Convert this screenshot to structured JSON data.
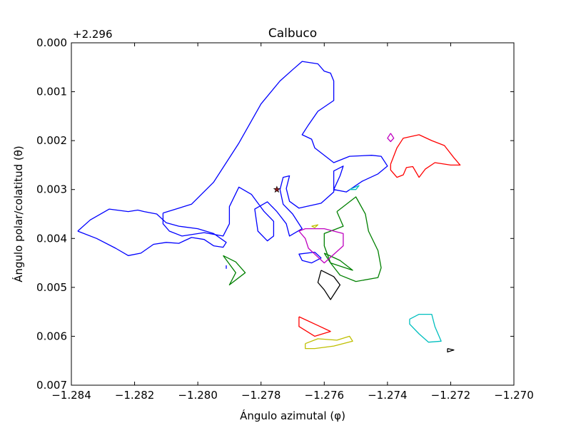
{
  "chart_data": {
    "type": "line",
    "title": "Calbuco",
    "xlabel": "Ángulo azimutal (φ)",
    "ylabel": "Ángulo polar/colatitud (θ)",
    "y_offset_label": "+2.296",
    "xlim": [
      -1.284,
      -1.27
    ],
    "ylim": [
      0.007,
      0.0
    ],
    "y_inverted": true,
    "grid": false,
    "legend": "none",
    "x_ticks": [
      -1.284,
      -1.282,
      -1.28,
      -1.278,
      -1.276,
      -1.274,
      -1.272,
      -1.27
    ],
    "x_tick_labels": [
      "−1.284",
      "−1.282",
      "−1.280",
      "−1.278",
      "−1.276",
      "−1.274",
      "−1.272",
      "−1.270"
    ],
    "y_ticks": [
      0.0,
      0.001,
      0.002,
      0.003,
      0.004,
      0.005,
      0.006,
      0.007
    ],
    "y_tick_labels": [
      "0.000",
      "0.001",
      "0.002",
      "0.003",
      "0.004",
      "0.005",
      "0.006",
      "0.007"
    ],
    "marker": {
      "x": -1.2775,
      "y": 0.003,
      "color": "#8b1a1a",
      "symbol": "star"
    },
    "series": [
      {
        "color": "#0000ff",
        "points": [
          [
            -1.2838,
            0.00385
          ],
          [
            -1.2832,
            0.004
          ],
          [
            -1.2826,
            0.0042
          ],
          [
            -1.2822,
            0.00435
          ],
          [
            -1.2818,
            0.0043
          ],
          [
            -1.2814,
            0.00412
          ],
          [
            -1.281,
            0.00408
          ],
          [
            -1.2806,
            0.0041
          ],
          [
            -1.2802,
            0.00398
          ],
          [
            -1.2798,
            0.00402
          ],
          [
            -1.2795,
            0.00415
          ],
          [
            -1.2792,
            0.00418
          ],
          [
            -1.2791,
            0.00408
          ],
          [
            -1.2795,
            0.0039
          ],
          [
            -1.28,
            0.0038
          ],
          [
            -1.2806,
            0.00375
          ],
          [
            -1.281,
            0.00368
          ],
          [
            -1.2813,
            0.0035
          ],
          [
            -1.2817,
            0.00345
          ],
          [
            -1.2819,
            0.00342
          ],
          [
            -1.2822,
            0.00345
          ],
          [
            -1.2828,
            0.0034
          ],
          [
            -1.2834,
            0.00362
          ],
          [
            -1.2838,
            0.00385
          ]
        ]
      },
      {
        "color": "#0000ff",
        "points": [
          [
            -1.2811,
            0.00348
          ],
          [
            -1.2802,
            0.0033
          ],
          [
            -1.2795,
            0.00285
          ],
          [
            -1.2787,
            0.00205
          ],
          [
            -1.278,
            0.00125
          ],
          [
            -1.2774,
            0.00078
          ],
          [
            -1.277,
            0.00055
          ],
          [
            -1.2767,
            0.00038
          ],
          [
            -1.2762,
            0.00043
          ],
          [
            -1.276,
            0.00058
          ],
          [
            -1.2758,
            0.00062
          ],
          [
            -1.2757,
            0.00078
          ],
          [
            -1.2757,
            0.00118
          ],
          [
            -1.2762,
            0.0014
          ],
          [
            -1.2765,
            0.00168
          ],
          [
            -1.2767,
            0.00188
          ],
          [
            -1.2764,
            0.00197
          ],
          [
            -1.2763,
            0.00215
          ],
          [
            -1.2757,
            0.00245
          ],
          [
            -1.2752,
            0.00232
          ],
          [
            -1.2745,
            0.0023
          ],
          [
            -1.2742,
            0.00232
          ],
          [
            -1.274,
            0.00252
          ],
          [
            -1.2743,
            0.00268
          ],
          [
            -1.2748,
            0.00283
          ],
          [
            -1.2753,
            0.00305
          ],
          [
            -1.2757,
            0.003
          ],
          [
            -1.2755,
            0.00272
          ],
          [
            -1.2754,
            0.00252
          ],
          [
            -1.2757,
            0.00262
          ],
          [
            -1.2757,
            0.00305
          ],
          [
            -1.2761,
            0.00328
          ],
          [
            -1.2768,
            0.00338
          ],
          [
            -1.2771,
            0.00324
          ],
          [
            -1.2772,
            0.00298
          ],
          [
            -1.2771,
            0.00272
          ],
          [
            -1.2773,
            0.00275
          ],
          [
            -1.2774,
            0.003
          ],
          [
            -1.2773,
            0.0033
          ],
          [
            -1.277,
            0.0035
          ],
          [
            -1.2767,
            0.0038
          ],
          [
            -1.2771,
            0.00395
          ],
          [
            -1.2772,
            0.0037
          ],
          [
            -1.2775,
            0.00345
          ],
          [
            -1.2778,
            0.00325
          ],
          [
            -1.2782,
            0.0034
          ],
          [
            -1.2781,
            0.00385
          ],
          [
            -1.2778,
            0.00405
          ],
          [
            -1.2776,
            0.00395
          ],
          [
            -1.2776,
            0.00365
          ],
          [
            -1.2779,
            0.00345
          ],
          [
            -1.2783,
            0.0031
          ],
          [
            -1.2787,
            0.00295
          ],
          [
            -1.279,
            0.00335
          ],
          [
            -1.279,
            0.0037
          ],
          [
            -1.2792,
            0.00395
          ],
          [
            -1.2798,
            0.00388
          ],
          [
            -1.2805,
            0.00395
          ],
          [
            -1.2809,
            0.00385
          ],
          [
            -1.2811,
            0.0037
          ],
          [
            -1.2811,
            0.00348
          ]
        ]
      },
      {
        "color": "#0000ff",
        "points": [
          [
            -1.2763,
            0.00428
          ],
          [
            -1.2761,
            0.0044
          ],
          [
            -1.2764,
            0.0045
          ],
          [
            -1.2767,
            0.00445
          ],
          [
            -1.2768,
            0.00432
          ],
          [
            -1.2763,
            0.00428
          ]
        ]
      },
      {
        "color": "#0000ff",
        "points": [
          [
            -1.2791,
            0.00455
          ],
          [
            -1.2791,
            0.00462
          ]
        ]
      },
      {
        "color": "#ff0000",
        "points": [
          [
            -1.2739,
            0.00248
          ],
          [
            -1.2737,
            0.00215
          ],
          [
            -1.2735,
            0.00195
          ],
          [
            -1.273,
            0.00188
          ],
          [
            -1.2726,
            0.002
          ],
          [
            -1.2722,
            0.0021
          ],
          [
            -1.2719,
            0.00235
          ],
          [
            -1.2717,
            0.0025
          ],
          [
            -1.272,
            0.0025
          ],
          [
            -1.2725,
            0.00245
          ],
          [
            -1.2728,
            0.00258
          ],
          [
            -1.273,
            0.00275
          ],
          [
            -1.2732,
            0.00253
          ],
          [
            -1.2734,
            0.00255
          ],
          [
            -1.2735,
            0.0027
          ],
          [
            -1.2737,
            0.00275
          ],
          [
            -1.2739,
            0.0026
          ],
          [
            -1.2739,
            0.00248
          ]
        ]
      },
      {
        "color": "#ff0000",
        "points": [
          [
            -1.2768,
            0.0056
          ],
          [
            -1.2762,
            0.00578
          ],
          [
            -1.2758,
            0.0059
          ],
          [
            -1.2763,
            0.006
          ],
          [
            -1.2768,
            0.0058
          ],
          [
            -1.2768,
            0.0056
          ]
        ]
      },
      {
        "color": "#008000",
        "points": [
          [
            -1.2756,
            0.00345
          ],
          [
            -1.275,
            0.00315
          ],
          [
            -1.2747,
            0.0035
          ],
          [
            -1.2746,
            0.00385
          ],
          [
            -1.2743,
            0.00425
          ],
          [
            -1.2742,
            0.0046
          ],
          [
            -1.2743,
            0.0048
          ],
          [
            -1.275,
            0.00488
          ],
          [
            -1.2755,
            0.00475
          ],
          [
            -1.2758,
            0.0045
          ],
          [
            -1.276,
            0.00415
          ],
          [
            -1.276,
            0.0039
          ],
          [
            -1.2756,
            0.0038
          ],
          [
            -1.2754,
            0.00375
          ],
          [
            -1.2756,
            0.00345
          ]
        ]
      },
      {
        "color": "#008000",
        "points": [
          [
            -1.276,
            0.0043
          ],
          [
            -1.2755,
            0.00445
          ],
          [
            -1.2751,
            0.00465
          ],
          [
            -1.2758,
            0.0045
          ],
          [
            -1.276,
            0.0043
          ]
        ]
      },
      {
        "color": "#008000",
        "points": [
          [
            -1.2792,
            0.00435
          ],
          [
            -1.2788,
            0.00448
          ],
          [
            -1.2785,
            0.0047
          ],
          [
            -1.279,
            0.00495
          ],
          [
            -1.2788,
            0.0047
          ],
          [
            -1.2792,
            0.00435
          ]
        ]
      },
      {
        "color": "#bf00bf",
        "points": [
          [
            -1.2768,
            0.00385
          ],
          [
            -1.2766,
            0.004
          ],
          [
            -1.2765,
            0.0042
          ],
          [
            -1.276,
            0.0045
          ],
          [
            -1.2754,
            0.00415
          ],
          [
            -1.2754,
            0.0039
          ],
          [
            -1.276,
            0.0038
          ],
          [
            -1.2766,
            0.0038
          ],
          [
            -1.2768,
            0.00385
          ]
        ]
      },
      {
        "color": "#bf00bf",
        "points": [
          [
            -1.2739,
            0.00185
          ],
          [
            -1.2738,
            0.00195
          ],
          [
            -1.2739,
            0.00202
          ],
          [
            -1.274,
            0.00195
          ],
          [
            -1.2739,
            0.00185
          ]
        ]
      },
      {
        "color": "#00bfbf",
        "points": [
          [
            -1.2733,
            0.00565
          ],
          [
            -1.273,
            0.00555
          ],
          [
            -1.2726,
            0.00555
          ],
          [
            -1.2725,
            0.0058
          ],
          [
            -1.2723,
            0.0061
          ],
          [
            -1.2727,
            0.00612
          ],
          [
            -1.273,
            0.00595
          ],
          [
            -1.2733,
            0.00575
          ],
          [
            -1.2733,
            0.00565
          ]
        ]
      },
      {
        "color": "#00bfbf",
        "points": [
          [
            -1.2752,
            0.003
          ],
          [
            -1.2749,
            0.00292
          ],
          [
            -1.275,
            0.003
          ],
          [
            -1.2752,
            0.003
          ]
        ]
      },
      {
        "color": "#bfbf00",
        "points": [
          [
            -1.2766,
            0.00615
          ],
          [
            -1.2762,
            0.00605
          ],
          [
            -1.2756,
            0.00608
          ],
          [
            -1.2752,
            0.006
          ],
          [
            -1.2751,
            0.0061
          ],
          [
            -1.2757,
            0.0062
          ],
          [
            -1.2763,
            0.00625
          ],
          [
            -1.2766,
            0.00625
          ],
          [
            -1.2766,
            0.00615
          ]
        ]
      },
      {
        "color": "#bfbf00",
        "points": [
          [
            -1.2764,
            0.00375
          ],
          [
            -1.2762,
            0.00372
          ],
          [
            -1.2763,
            0.00378
          ],
          [
            -1.2764,
            0.00375
          ]
        ]
      },
      {
        "color": "#000000",
        "points": [
          [
            -1.2761,
            0.00465
          ],
          [
            -1.2757,
            0.00478
          ],
          [
            -1.2755,
            0.00495
          ],
          [
            -1.2758,
            0.00525
          ],
          [
            -1.276,
            0.00505
          ],
          [
            -1.2762,
            0.0049
          ],
          [
            -1.2761,
            0.00465
          ]
        ]
      },
      {
        "color": "#000000",
        "points": [
          [
            -1.2721,
            0.00625
          ],
          [
            -1.2719,
            0.00628
          ],
          [
            -1.2721,
            0.00632
          ],
          [
            -1.2721,
            0.00625
          ]
        ]
      }
    ]
  }
}
